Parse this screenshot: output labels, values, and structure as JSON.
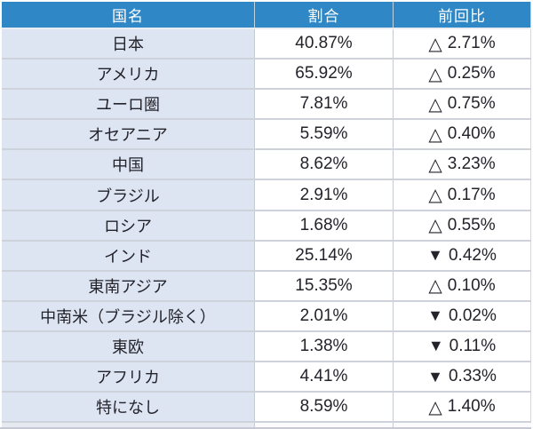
{
  "chart_data": {
    "type": "table",
    "columns": [
      "国名",
      "割合",
      "前回比"
    ],
    "up_symbol": "△",
    "down_symbol": "▼",
    "rows": [
      {
        "country": "日本",
        "share": "40.87%",
        "delta_dir": "up",
        "delta": "2.71%"
      },
      {
        "country": "アメリカ",
        "share": "65.92%",
        "delta_dir": "up",
        "delta": "0.25%"
      },
      {
        "country": "ユーロ圏",
        "share": "7.81%",
        "delta_dir": "up",
        "delta": "0.75%"
      },
      {
        "country": "オセアニア",
        "share": "5.59%",
        "delta_dir": "up",
        "delta": "0.40%"
      },
      {
        "country": "中国",
        "share": "8.62%",
        "delta_dir": "up",
        "delta": "3.23%"
      },
      {
        "country": "ブラジル",
        "share": "2.91%",
        "delta_dir": "up",
        "delta": "0.17%"
      },
      {
        "country": "ロシア",
        "share": "1.68%",
        "delta_dir": "up",
        "delta": "0.55%"
      },
      {
        "country": "インド",
        "share": "25.14%",
        "delta_dir": "down",
        "delta": "0.42%"
      },
      {
        "country": "東南アジア",
        "share": "15.35%",
        "delta_dir": "up",
        "delta": "0.10%"
      },
      {
        "country": "中南米（ブラジル除く）",
        "share": "2.01%",
        "delta_dir": "down",
        "delta": "0.02%"
      },
      {
        "country": "東欧",
        "share": "1.38%",
        "delta_dir": "down",
        "delta": "0.11%"
      },
      {
        "country": "アフリカ",
        "share": "4.41%",
        "delta_dir": "down",
        "delta": "0.33%"
      },
      {
        "country": "特になし",
        "share": "8.59%",
        "delta_dir": "up",
        "delta": "1.40%"
      }
    ],
    "colors": {
      "header_bg": "#2F88C5",
      "header_text": "#FFFFFF",
      "country_col_bg": "#DDE4F2",
      "value_col_bg": "#FFFFFF",
      "text": "#23232B"
    }
  }
}
